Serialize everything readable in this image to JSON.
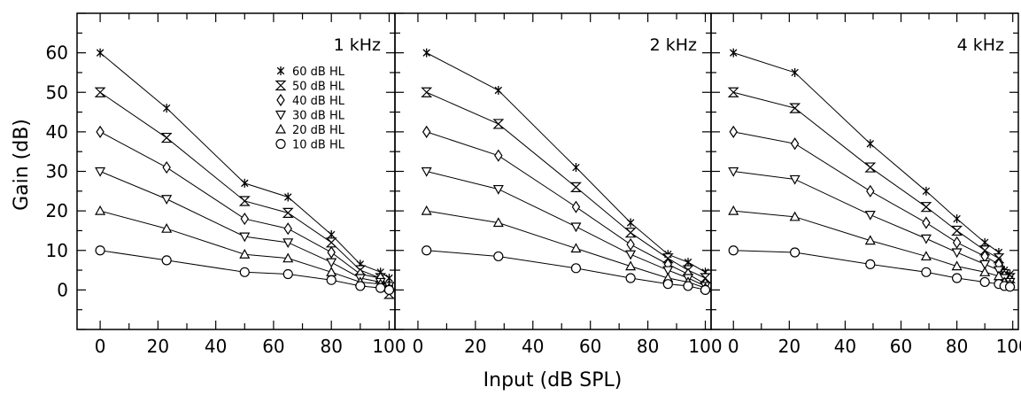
{
  "chart_data": {
    "type": "line",
    "xlabel": "Input (dB SPL)",
    "ylabel": "Gain (dB)",
    "xlim": [
      -8,
      102
    ],
    "ylim": [
      -10,
      70
    ],
    "xticks": [
      0,
      20,
      40,
      60,
      80,
      100
    ],
    "yticks": [
      0,
      10,
      20,
      30,
      40,
      50,
      60
    ],
    "legend_placement": "inside top-right of first panel",
    "legend": [
      {
        "label": "60 dB HL",
        "marker": "asterisk"
      },
      {
        "label": "50 dB HL",
        "marker": "hourglass"
      },
      {
        "label": "40 dB HL",
        "marker": "diamond"
      },
      {
        "label": "30 dB HL",
        "marker": "triangle-down"
      },
      {
        "label": "20 dB HL",
        "marker": "triangle-up"
      },
      {
        "label": "10 dB HL",
        "marker": "circle"
      }
    ],
    "panels": [
      {
        "title": "1 kHz",
        "series": [
          {
            "name": "60 dB HL",
            "x": [
              0,
              23,
              50,
              65,
              80,
              90,
              97,
              100
            ],
            "y": [
              60,
              46,
              27,
              23.5,
              14,
              6.5,
              4.5,
              3
            ]
          },
          {
            "name": "50 dB HL",
            "x": [
              0,
              23,
              50,
              65,
              80,
              90,
              97,
              100
            ],
            "y": [
              50,
              38.5,
              22.5,
              19.5,
              12,
              5,
              3,
              -1
            ]
          },
          {
            "name": "40 dB HL",
            "x": [
              0,
              23,
              50,
              65,
              80,
              90,
              97,
              100
            ],
            "y": [
              40,
              31,
              18,
              15.5,
              9.5,
              4,
              3,
              1
            ]
          },
          {
            "name": "30 dB HL",
            "x": [
              0,
              23,
              50,
              65,
              80,
              90,
              97,
              100
            ],
            "y": [
              30,
              23,
              13.5,
              12,
              7,
              3,
              2,
              1
            ]
          },
          {
            "name": "20 dB HL",
            "x": [
              0,
              23,
              50,
              65,
              80,
              90,
              97,
              100
            ],
            "y": [
              20,
              15.5,
              9,
              8,
              4.5,
              2,
              1.5,
              0.5
            ]
          },
          {
            "name": "10 dB HL",
            "x": [
              0,
              23,
              50,
              65,
              80,
              90,
              97,
              100
            ],
            "y": [
              10,
              7.5,
              4.5,
              4,
              2.5,
              1,
              0.5,
              0
            ]
          }
        ]
      },
      {
        "title": "2 kHz",
        "series": [
          {
            "name": "60 dB HL",
            "x": [
              3,
              28,
              55,
              74,
              87,
              94,
              100
            ],
            "y": [
              60,
              50.5,
              31,
              17,
              9,
              7,
              4.5
            ]
          },
          {
            "name": "50 dB HL",
            "x": [
              3,
              28,
              55,
              74,
              87,
              94,
              100
            ],
            "y": [
              50,
              42,
              26,
              14.5,
              8,
              5,
              3
            ]
          },
          {
            "name": "40 dB HL",
            "x": [
              3,
              28,
              55,
              74,
              87,
              94,
              100
            ],
            "y": [
              40,
              34,
              21,
              11.5,
              6.5,
              4,
              1.5
            ]
          },
          {
            "name": "30 dB HL",
            "x": [
              3,
              28,
              55,
              74,
              87,
              94,
              100
            ],
            "y": [
              30,
              25.5,
              16,
              9,
              5,
              3,
              1
            ]
          },
          {
            "name": "20 dB HL",
            "x": [
              3,
              28,
              55,
              74,
              87,
              94,
              100
            ],
            "y": [
              20,
              17,
              10.5,
              6,
              3,
              2,
              0.5
            ]
          },
          {
            "name": "10 dB HL",
            "x": [
              3,
              28,
              55,
              74,
              87,
              94,
              100
            ],
            "y": [
              10,
              8.5,
              5.5,
              3,
              1.5,
              1,
              0
            ]
          }
        ]
      },
      {
        "title": "4 kHz",
        "series": [
          {
            "name": "60 dB HL",
            "x": [
              0,
              22,
              49,
              69,
              80,
              90,
              95,
              97,
              99
            ],
            "y": [
              60,
              55,
              37,
              25,
              18,
              12,
              9.5,
              5,
              4
            ]
          },
          {
            "name": "50 dB HL",
            "x": [
              0,
              22,
              49,
              69,
              80,
              90,
              95,
              97,
              99
            ],
            "y": [
              50,
              46,
              31,
              21,
              15,
              10,
              8,
              4,
              3
            ]
          },
          {
            "name": "40 dB HL",
            "x": [
              0,
              22,
              49,
              69,
              80,
              90,
              95,
              97,
              99
            ],
            "y": [
              40,
              37,
              25,
              17,
              12,
              8.5,
              6.5,
              3.5,
              2.5
            ]
          },
          {
            "name": "30 dB HL",
            "x": [
              0,
              22,
              49,
              69,
              80,
              90,
              95,
              97,
              99
            ],
            "y": [
              30,
              28,
              19,
              13,
              9.5,
              6.5,
              5,
              3,
              2
            ]
          },
          {
            "name": "20 dB HL",
            "x": [
              0,
              22,
              49,
              69,
              80,
              90,
              95,
              97,
              99
            ],
            "y": [
              20,
              18.5,
              12.5,
              8.5,
              6,
              4.5,
              3.5,
              2,
              1.5
            ]
          },
          {
            "name": "10 dB HL",
            "x": [
              0,
              22,
              49,
              69,
              80,
              90,
              95,
              97,
              99
            ],
            "y": [
              10,
              9.5,
              6.5,
              4.5,
              3,
              2,
              1.5,
              1,
              0.8
            ]
          }
        ]
      }
    ]
  }
}
